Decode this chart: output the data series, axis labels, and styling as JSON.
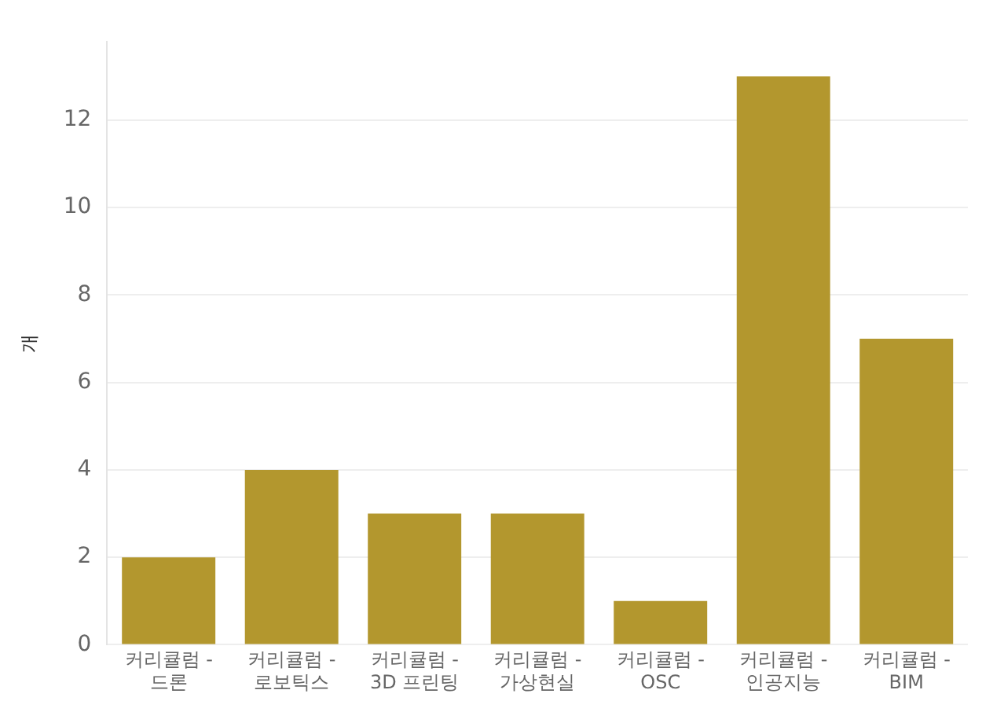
{
  "chart_data": {
    "type": "bar",
    "ylabel": "개",
    "categories": [
      "커리큘럼 - 드론",
      "커리큘럼 - 로보틱스",
      "커리큘럼 - 3D 프린팅",
      "커리큘럼 - 가상현실",
      "커리큘럼 - OSC",
      "커리큘럼 - 인공지능",
      "커리큘럼 - BIM"
    ],
    "values": [
      2,
      4,
      3,
      3,
      1,
      13,
      7
    ],
    "color": "#b3972e",
    "ylim": [
      0,
      13.8
    ],
    "yticks": [
      0,
      2,
      4,
      6,
      8,
      10,
      12
    ],
    "grid": "y",
    "legend": false
  }
}
